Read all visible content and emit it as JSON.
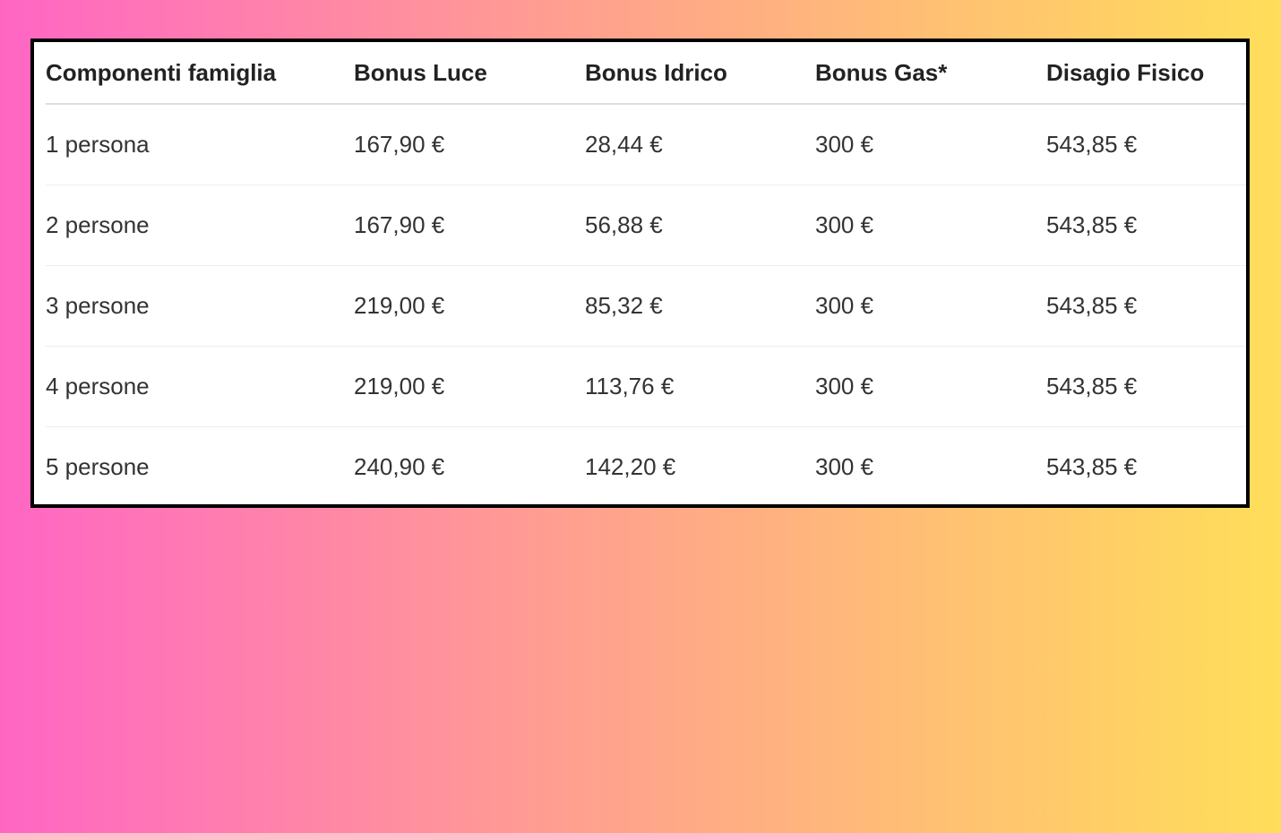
{
  "table": {
    "headers": [
      "Componenti famiglia",
      "Bonus Luce",
      "Bonus Idrico",
      "Bonus Gas*",
      "Disagio Fisico"
    ],
    "rows": [
      [
        "1 persona",
        "167,90 €",
        "28,44 €",
        "300 €",
        "543,85 €"
      ],
      [
        "2 persone",
        "167,90 €",
        "56,88 €",
        "300 €",
        "543,85 €"
      ],
      [
        "3 persone",
        "219,00 €",
        "85,32 €",
        "300 €",
        "543,85 €"
      ],
      [
        "4 persone",
        "219,00 €",
        "113,76 €",
        "300 €",
        "543,85 €"
      ],
      [
        "5 persone",
        "240,90 €",
        "142,20 €",
        "300 €",
        "543,85 €"
      ]
    ]
  },
  "colors": {
    "gradient_start": "#ff66c4",
    "gradient_end": "#ffde59",
    "border": "#000000"
  }
}
